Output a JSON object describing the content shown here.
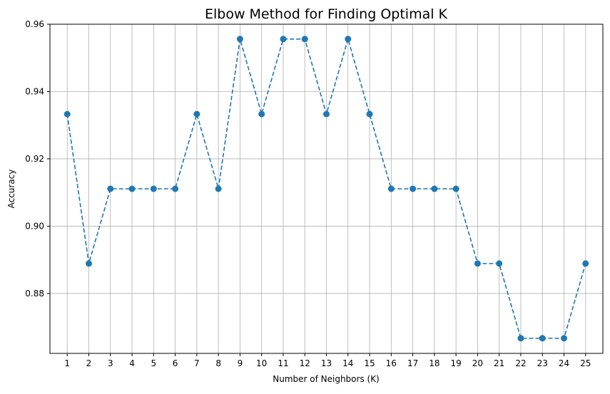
{
  "chart_data": {
    "type": "line",
    "title": "Elbow Method for Finding Optimal K",
    "xlabel": "Number of Neighbors (K)",
    "ylabel": "Accuracy",
    "x": [
      1,
      2,
      3,
      4,
      5,
      6,
      7,
      8,
      9,
      10,
      11,
      12,
      13,
      14,
      15,
      16,
      17,
      18,
      19,
      20,
      21,
      22,
      23,
      24,
      25
    ],
    "series": [
      {
        "values": [
          0.9333,
          0.8889,
          0.9111,
          0.9111,
          0.9111,
          0.9111,
          0.9333,
          0.9111,
          0.9556,
          0.9333,
          0.9556,
          0.9556,
          0.9333,
          0.9556,
          0.9333,
          0.9111,
          0.9111,
          0.9111,
          0.9111,
          0.8889,
          0.8889,
          0.8667,
          0.8667,
          0.8667,
          0.8889
        ],
        "color": "#1f77b4",
        "line_style": "dashed",
        "marker": "circle"
      }
    ],
    "x_ticks": [
      "1",
      "2",
      "3",
      "4",
      "5",
      "6",
      "7",
      "8",
      "9",
      "10",
      "11",
      "12",
      "13",
      "14",
      "15",
      "16",
      "17",
      "18",
      "19",
      "20",
      "21",
      "22",
      "23",
      "24",
      "25"
    ],
    "y_ticks": [
      "0.88",
      "0.90",
      "0.92",
      "0.94",
      "0.96"
    ],
    "xlim": [
      0.2,
      25.8
    ],
    "ylim": [
      0.8622,
      0.96
    ],
    "grid": true,
    "grid_color": "#b0b0b0"
  }
}
